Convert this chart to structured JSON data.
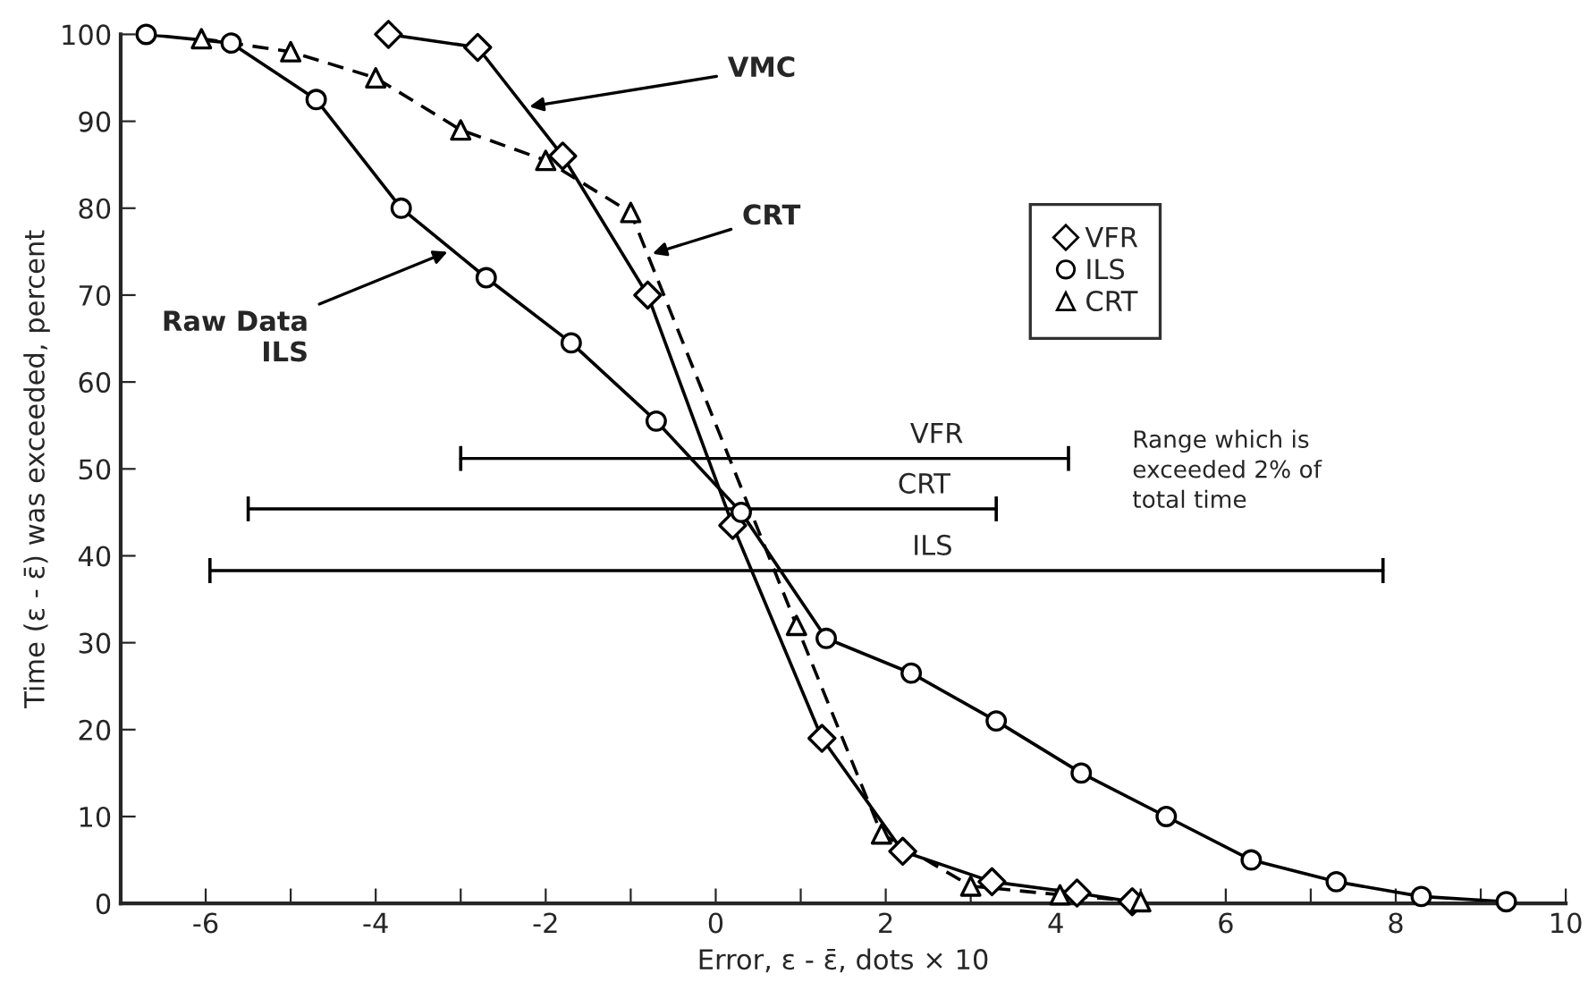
{
  "chart_data": {
    "type": "line",
    "xlabel": "Error, ε - ε̄, dots × 10",
    "ylabel": "Time (ε - ε̄) was exceeded, percent",
    "xlim": [
      -7,
      10
    ],
    "ylim": [
      0,
      100
    ],
    "xticks": [
      -6,
      {
        "value": -5,
        "label": null
      },
      -4,
      {
        "value": -3,
        "label": null
      },
      -2,
      {
        "value": -1,
        "label": null
      },
      0,
      {
        "value": 1,
        "label": null
      },
      2,
      {
        "value": 3,
        "label": null
      },
      4,
      {
        "value": 5,
        "label": null
      },
      6,
      {
        "value": 7,
        "label": null
      },
      8,
      {
        "value": 9,
        "label": null
      },
      10
    ],
    "yticks": [
      0,
      10,
      20,
      30,
      40,
      50,
      60,
      70,
      80,
      90,
      100
    ],
    "grid": false,
    "legend": "top",
    "series": [
      {
        "name": "VFR",
        "color": "#000000",
        "marker": "diamond",
        "line_style": "solid",
        "x": [
          -3.85,
          -2.8,
          -1.8,
          -0.8,
          0.2,
          1.25,
          2.2,
          3.25,
          4.25,
          4.9
        ],
        "values": [
          100,
          98.5,
          86,
          70,
          43.5,
          19,
          6,
          2.5,
          1.2,
          0.2
        ]
      },
      {
        "name": "ILS",
        "color": "#000000",
        "marker": "circle",
        "line_style": "solid",
        "x": [
          -6.7,
          -5.7,
          -4.7,
          -3.7,
          -2.7,
          -1.7,
          -0.7,
          0.3,
          1.3,
          2.3,
          3.3,
          4.3,
          5.3,
          6.3,
          7.3,
          8.3,
          9.3
        ],
        "values": [
          100,
          99,
          92.5,
          80,
          72,
          64.5,
          55.5,
          45,
          30.5,
          26.5,
          21,
          15,
          10,
          5,
          2.5,
          0.8,
          0.2
        ]
      },
      {
        "name": "CRT",
        "color": "#000000",
        "marker": "triangle",
        "line_style": "dashed",
        "x": [
          -6.05,
          -5.0,
          -4.0,
          -3.0,
          -2.0,
          -1.0,
          0.95,
          1.95,
          3.0,
          4.05,
          5.0
        ],
        "values": [
          99.5,
          98,
          95,
          89,
          85.5,
          79.5,
          32,
          8,
          2,
          1,
          0.2
        ]
      },
      {
        "type": "line",
        "color": "#000000",
        "marker": "none",
        "line_style": "solid",
        "x": [
          -3.0,
          4.15
        ],
        "values": [
          51.2,
          51.2
        ]
      },
      {
        "type": "line",
        "color": "#000000",
        "marker": "none",
        "line_style": "solid",
        "x": [
          -5.5,
          3.3
        ],
        "values": [
          45.4,
          45.4
        ]
      },
      {
        "type": "line",
        "color": "#000000",
        "marker": "none",
        "line_style": "solid",
        "x": [
          -5.95,
          7.85
        ],
        "values": [
          38.3,
          38.3
        ]
      }
    ],
    "annotations": [
      {
        "text": "VMC",
        "x": -2.25,
        "y": 91.6
      },
      {
        "text": "CRT",
        "x": -0.8,
        "y": 74.6
      },
      {
        "text": "Raw Data\nILS",
        "x": -3.1,
        "y": 75.2
      },
      {
        "text": "VFR",
        "x": 2.6,
        "y": 51.2
      },
      {
        "text": "CRT",
        "x": 2.45,
        "y": 45.4
      },
      {
        "text": "ILS",
        "x": 2.55,
        "y": 38.3
      },
      "Range which is\nexceeded 2% of\ntotal time"
    ]
  }
}
